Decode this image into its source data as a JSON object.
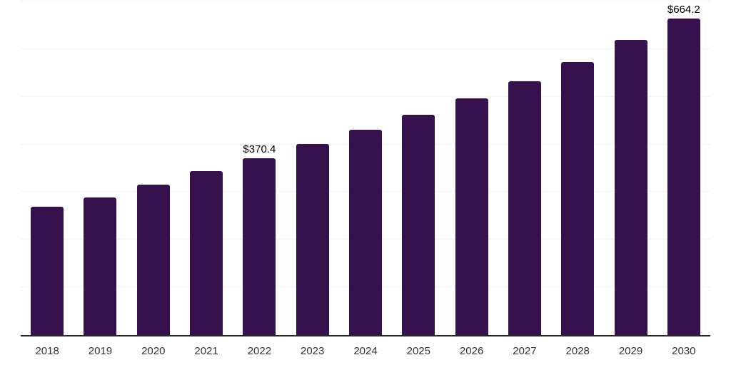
{
  "chart_data": {
    "type": "bar",
    "categories": [
      "2018",
      "2019",
      "2020",
      "2021",
      "2022",
      "2023",
      "2024",
      "2025",
      "2026",
      "2027",
      "2028",
      "2029",
      "2030"
    ],
    "values": [
      270,
      289,
      316,
      344,
      370.4,
      401,
      431,
      462,
      496,
      533,
      573,
      620,
      664.2
    ],
    "annotations": [
      {
        "index": 4,
        "text": "$370.4"
      },
      {
        "index": 12,
        "text": "$664.2"
      }
    ],
    "ylim": [
      0,
      700
    ],
    "gridline_interval": 100,
    "grid": true,
    "legend": "none",
    "colors": {
      "bar": "#36114d",
      "axis": "#262626",
      "gridline": "#f2f2f2",
      "tick_label": "#333333",
      "annotation": "#000000",
      "background": "#ffffff"
    }
  }
}
